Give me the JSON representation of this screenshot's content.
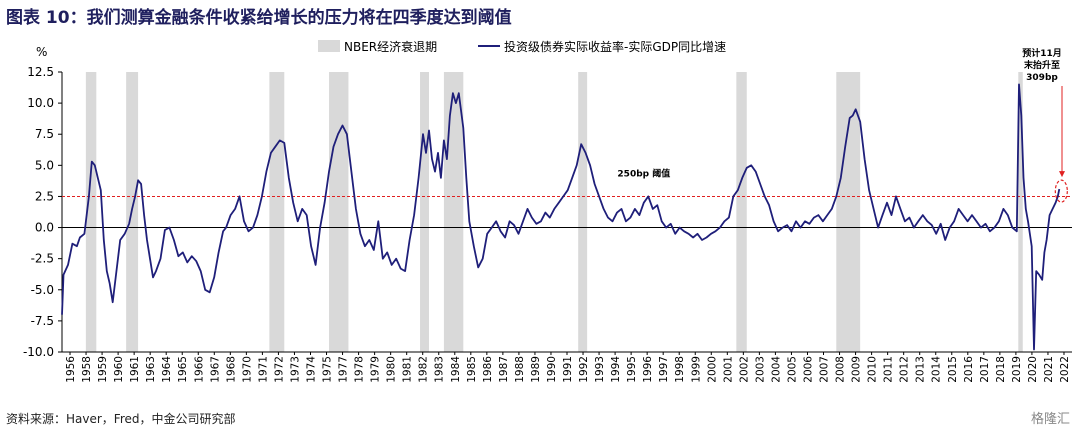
{
  "title": "图表 10：我们测算金融条件收紧给增长的压力将在四季度达到阈值",
  "source": "资料来源：Haver，Fred，中金公司研究部",
  "watermark": "格隆汇",
  "colors": {
    "line": "#1f1f7a",
    "recession": "#d9d9d9",
    "threshold": "#e02020",
    "axis": "#000000"
  },
  "chart_data": {
    "type": "line",
    "ylabel": "%",
    "ylim": [
      -10,
      12.5
    ],
    "yticks": [
      "12.5",
      "10.0",
      "7.5",
      "5.0",
      "2.5",
      "0.0",
      "-2.5",
      "-5.0",
      "-7.5",
      "-10.0"
    ],
    "xlim": [
      1956,
      2023.7
    ],
    "xticks": [
      "1956",
      "1958",
      "1959",
      "1960",
      "1961",
      "1963",
      "1964",
      "1965",
      "1966",
      "1967",
      "1968",
      "1970",
      "1971",
      "1972",
      "1973",
      "1974",
      "1975",
      "1977",
      "1978",
      "1979",
      "1980",
      "1981",
      "1982",
      "1983",
      "1984",
      "1985",
      "1986",
      "1987",
      "1988",
      "1989",
      "1990",
      "1991",
      "1992",
      "1993",
      "1994",
      "1995",
      "1996",
      "1997",
      "1998",
      "1999",
      "2000",
      "2001",
      "2002",
      "2003",
      "2004",
      "2005",
      "2006",
      "2007",
      "2008",
      "2009",
      "2010",
      "2011",
      "2012",
      "2013",
      "2014",
      "2015",
      "2016",
      "2017",
      "2018",
      "2019",
      "2020",
      "2021",
      "2022"
    ],
    "legend": {
      "placement": "top",
      "recession_label": "NBER经济衰退期",
      "series_label": "投资级债券实际收益率-实际GDP同比增速"
    },
    "recessions": [
      [
        1957.6,
        1958.3
      ],
      [
        1960.3,
        1961.1
      ],
      [
        1969.9,
        1970.9
      ],
      [
        1973.9,
        1975.2
      ],
      [
        1980.0,
        1980.6
      ],
      [
        1981.6,
        1982.9
      ],
      [
        1990.6,
        1991.2
      ],
      [
        2001.2,
        2001.9
      ],
      [
        2007.9,
        2009.5
      ],
      [
        2020.1,
        2020.4
      ]
    ],
    "threshold": {
      "value": 2.5,
      "label": "250bp 阈值"
    },
    "annotation": {
      "lines": [
        "预计11月",
        "末抬升至",
        "309bp"
      ],
      "target": [
        2022.85,
        3.09
      ]
    },
    "series": [
      {
        "name": "投资级债券实际收益率-实际GDP同比增速",
        "points": [
          [
            1956.0,
            -7.0
          ],
          [
            1956.1,
            -3.8
          ],
          [
            1956.4,
            -3.0
          ],
          [
            1956.7,
            -1.3
          ],
          [
            1957.0,
            -1.5
          ],
          [
            1957.2,
            -0.8
          ],
          [
            1957.5,
            -0.5
          ],
          [
            1957.8,
            2.5
          ],
          [
            1958.0,
            5.3
          ],
          [
            1958.2,
            5.0
          ],
          [
            1958.4,
            4.0
          ],
          [
            1958.6,
            3.0
          ],
          [
            1958.8,
            -1.0
          ],
          [
            1959.0,
            -3.5
          ],
          [
            1959.2,
            -4.5
          ],
          [
            1959.4,
            -6.0
          ],
          [
            1959.6,
            -4.0
          ],
          [
            1959.9,
            -1.0
          ],
          [
            1960.2,
            -0.5
          ],
          [
            1960.5,
            0.3
          ],
          [
            1960.7,
            1.5
          ],
          [
            1960.9,
            2.5
          ],
          [
            1961.1,
            3.8
          ],
          [
            1961.3,
            3.5
          ],
          [
            1961.5,
            1.0
          ],
          [
            1961.7,
            -1.0
          ],
          [
            1961.9,
            -2.5
          ],
          [
            1962.1,
            -4.0
          ],
          [
            1962.3,
            -3.5
          ],
          [
            1962.6,
            -2.5
          ],
          [
            1962.9,
            -0.2
          ],
          [
            1963.2,
            0.0
          ],
          [
            1963.5,
            -1.0
          ],
          [
            1963.8,
            -2.3
          ],
          [
            1964.1,
            -2.0
          ],
          [
            1964.4,
            -2.8
          ],
          [
            1964.7,
            -2.3
          ],
          [
            1965.0,
            -2.7
          ],
          [
            1965.3,
            -3.5
          ],
          [
            1965.6,
            -5.0
          ],
          [
            1965.9,
            -5.2
          ],
          [
            1966.2,
            -4.0
          ],
          [
            1966.5,
            -2.0
          ],
          [
            1966.8,
            -0.3
          ],
          [
            1967.0,
            0.0
          ],
          [
            1967.3,
            1.0
          ],
          [
            1967.6,
            1.5
          ],
          [
            1967.9,
            2.5
          ],
          [
            1968.2,
            0.5
          ],
          [
            1968.5,
            -0.3
          ],
          [
            1968.8,
            0.0
          ],
          [
            1969.1,
            1.0
          ],
          [
            1969.4,
            2.5
          ],
          [
            1969.7,
            4.5
          ],
          [
            1970.0,
            6.0
          ],
          [
            1970.3,
            6.5
          ],
          [
            1970.6,
            7.0
          ],
          [
            1970.9,
            6.8
          ],
          [
            1971.2,
            4.0
          ],
          [
            1971.5,
            2.0
          ],
          [
            1971.8,
            0.5
          ],
          [
            1972.1,
            1.5
          ],
          [
            1972.4,
            1.0
          ],
          [
            1972.7,
            -1.5
          ],
          [
            1973.0,
            -3.0
          ],
          [
            1973.3,
            0.0
          ],
          [
            1973.6,
            2.0
          ],
          [
            1973.9,
            4.5
          ],
          [
            1974.2,
            6.5
          ],
          [
            1974.5,
            7.5
          ],
          [
            1974.8,
            8.2
          ],
          [
            1975.1,
            7.5
          ],
          [
            1975.4,
            4.5
          ],
          [
            1975.7,
            1.5
          ],
          [
            1976.0,
            -0.5
          ],
          [
            1976.3,
            -1.5
          ],
          [
            1976.6,
            -1.0
          ],
          [
            1976.9,
            -1.8
          ],
          [
            1977.2,
            0.5
          ],
          [
            1977.5,
            -2.5
          ],
          [
            1977.8,
            -2.0
          ],
          [
            1978.1,
            -3.0
          ],
          [
            1978.4,
            -2.5
          ],
          [
            1978.7,
            -3.3
          ],
          [
            1979.0,
            -3.5
          ],
          [
            1979.3,
            -1.0
          ],
          [
            1979.6,
            1.0
          ],
          [
            1979.9,
            4.0
          ],
          [
            1980.2,
            7.5
          ],
          [
            1980.4,
            6.0
          ],
          [
            1980.6,
            7.8
          ],
          [
            1980.8,
            5.5
          ],
          [
            1981.0,
            4.5
          ],
          [
            1981.2,
            6.0
          ],
          [
            1981.4,
            4.0
          ],
          [
            1981.6,
            7.0
          ],
          [
            1981.8,
            5.5
          ],
          [
            1982.0,
            9.0
          ],
          [
            1982.2,
            10.8
          ],
          [
            1982.4,
            10.0
          ],
          [
            1982.6,
            10.8
          ],
          [
            1982.9,
            8.0
          ],
          [
            1983.1,
            4.0
          ],
          [
            1983.3,
            0.5
          ],
          [
            1983.6,
            -1.5
          ],
          [
            1983.9,
            -3.2
          ],
          [
            1984.2,
            -2.5
          ],
          [
            1984.5,
            -0.5
          ],
          [
            1984.8,
            0.0
          ],
          [
            1985.1,
            0.5
          ],
          [
            1985.4,
            -0.3
          ],
          [
            1985.7,
            -0.8
          ],
          [
            1986.0,
            0.5
          ],
          [
            1986.3,
            0.2
          ],
          [
            1986.6,
            -0.5
          ],
          [
            1986.9,
            0.5
          ],
          [
            1987.2,
            1.5
          ],
          [
            1987.5,
            0.8
          ],
          [
            1987.8,
            0.3
          ],
          [
            1988.1,
            0.5
          ],
          [
            1988.4,
            1.2
          ],
          [
            1988.7,
            0.8
          ],
          [
            1989.0,
            1.5
          ],
          [
            1989.3,
            2.0
          ],
          [
            1989.6,
            2.5
          ],
          [
            1989.9,
            3.0
          ],
          [
            1990.2,
            4.0
          ],
          [
            1990.5,
            5.0
          ],
          [
            1990.8,
            6.7
          ],
          [
            1991.1,
            6.0
          ],
          [
            1991.4,
            5.0
          ],
          [
            1991.7,
            3.5
          ],
          [
            1992.0,
            2.5
          ],
          [
            1992.3,
            1.5
          ],
          [
            1992.6,
            0.8
          ],
          [
            1992.9,
            0.5
          ],
          [
            1993.2,
            1.2
          ],
          [
            1993.5,
            1.5
          ],
          [
            1993.8,
            0.5
          ],
          [
            1994.1,
            0.8
          ],
          [
            1994.4,
            1.5
          ],
          [
            1994.7,
            1.0
          ],
          [
            1995.0,
            2.0
          ],
          [
            1995.3,
            2.5
          ],
          [
            1995.6,
            1.5
          ],
          [
            1995.9,
            1.8
          ],
          [
            1996.2,
            0.5
          ],
          [
            1996.5,
            0.0
          ],
          [
            1996.8,
            0.3
          ],
          [
            1997.1,
            -0.5
          ],
          [
            1997.4,
            0.0
          ],
          [
            1997.7,
            -0.3
          ],
          [
            1998.0,
            -0.5
          ],
          [
            1998.3,
            -0.8
          ],
          [
            1998.6,
            -0.5
          ],
          [
            1998.9,
            -1.0
          ],
          [
            1999.2,
            -0.8
          ],
          [
            1999.5,
            -0.5
          ],
          [
            1999.8,
            -0.3
          ],
          [
            2000.1,
            0.0
          ],
          [
            2000.4,
            0.5
          ],
          [
            2000.7,
            0.8
          ],
          [
            2001.0,
            2.5
          ],
          [
            2001.3,
            3.0
          ],
          [
            2001.6,
            4.0
          ],
          [
            2001.9,
            4.8
          ],
          [
            2002.2,
            5.0
          ],
          [
            2002.5,
            4.5
          ],
          [
            2002.8,
            3.5
          ],
          [
            2003.1,
            2.5
          ],
          [
            2003.4,
            1.8
          ],
          [
            2003.7,
            0.5
          ],
          [
            2004.0,
            -0.3
          ],
          [
            2004.3,
            0.0
          ],
          [
            2004.6,
            0.2
          ],
          [
            2004.9,
            -0.3
          ],
          [
            2005.2,
            0.5
          ],
          [
            2005.5,
            0.0
          ],
          [
            2005.8,
            0.5
          ],
          [
            2006.1,
            0.3
          ],
          [
            2006.4,
            0.8
          ],
          [
            2006.7,
            1.0
          ],
          [
            2007.0,
            0.5
          ],
          [
            2007.3,
            1.0
          ],
          [
            2007.6,
            1.5
          ],
          [
            2007.9,
            2.5
          ],
          [
            2008.2,
            4.0
          ],
          [
            2008.5,
            6.5
          ],
          [
            2008.8,
            8.8
          ],
          [
            2009.0,
            9.0
          ],
          [
            2009.2,
            9.5
          ],
          [
            2009.5,
            8.5
          ],
          [
            2009.8,
            5.5
          ],
          [
            2010.1,
            3.0
          ],
          [
            2010.4,
            1.5
          ],
          [
            2010.7,
            0.0
          ],
          [
            2011.0,
            1.0
          ],
          [
            2011.3,
            2.0
          ],
          [
            2011.6,
            1.0
          ],
          [
            2011.9,
            2.5
          ],
          [
            2012.2,
            1.5
          ],
          [
            2012.5,
            0.5
          ],
          [
            2012.8,
            0.8
          ],
          [
            2013.1,
            0.0
          ],
          [
            2013.4,
            0.5
          ],
          [
            2013.7,
            1.0
          ],
          [
            2014.0,
            0.5
          ],
          [
            2014.3,
            0.2
          ],
          [
            2014.6,
            -0.5
          ],
          [
            2014.9,
            0.3
          ],
          [
            2015.2,
            -1.0
          ],
          [
            2015.5,
            0.0
          ],
          [
            2015.8,
            0.5
          ],
          [
            2016.1,
            1.5
          ],
          [
            2016.4,
            1.0
          ],
          [
            2016.7,
            0.5
          ],
          [
            2017.0,
            1.0
          ],
          [
            2017.3,
            0.5
          ],
          [
            2017.6,
            0.0
          ],
          [
            2017.9,
            0.3
          ],
          [
            2018.2,
            -0.3
          ],
          [
            2018.5,
            0.0
          ],
          [
            2018.8,
            0.5
          ],
          [
            2019.1,
            1.5
          ],
          [
            2019.4,
            1.0
          ],
          [
            2019.7,
            0.0
          ],
          [
            2020.0,
            -0.3
          ],
          [
            2020.15,
            11.5
          ],
          [
            2020.3,
            9.0
          ],
          [
            2020.45,
            4.0
          ],
          [
            2020.6,
            1.5
          ],
          [
            2020.75,
            0.5
          ],
          [
            2021.0,
            -1.5
          ],
          [
            2021.15,
            -9.8
          ],
          [
            2021.3,
            -3.5
          ],
          [
            2021.5,
            -3.8
          ],
          [
            2021.7,
            -4.2
          ],
          [
            2021.85,
            -2.0
          ],
          [
            2022.0,
            -1.0
          ],
          [
            2022.2,
            1.0
          ],
          [
            2022.4,
            1.5
          ],
          [
            2022.6,
            2.0
          ],
          [
            2022.75,
            2.5
          ],
          [
            2022.85,
            3.09
          ]
        ]
      }
    ]
  }
}
